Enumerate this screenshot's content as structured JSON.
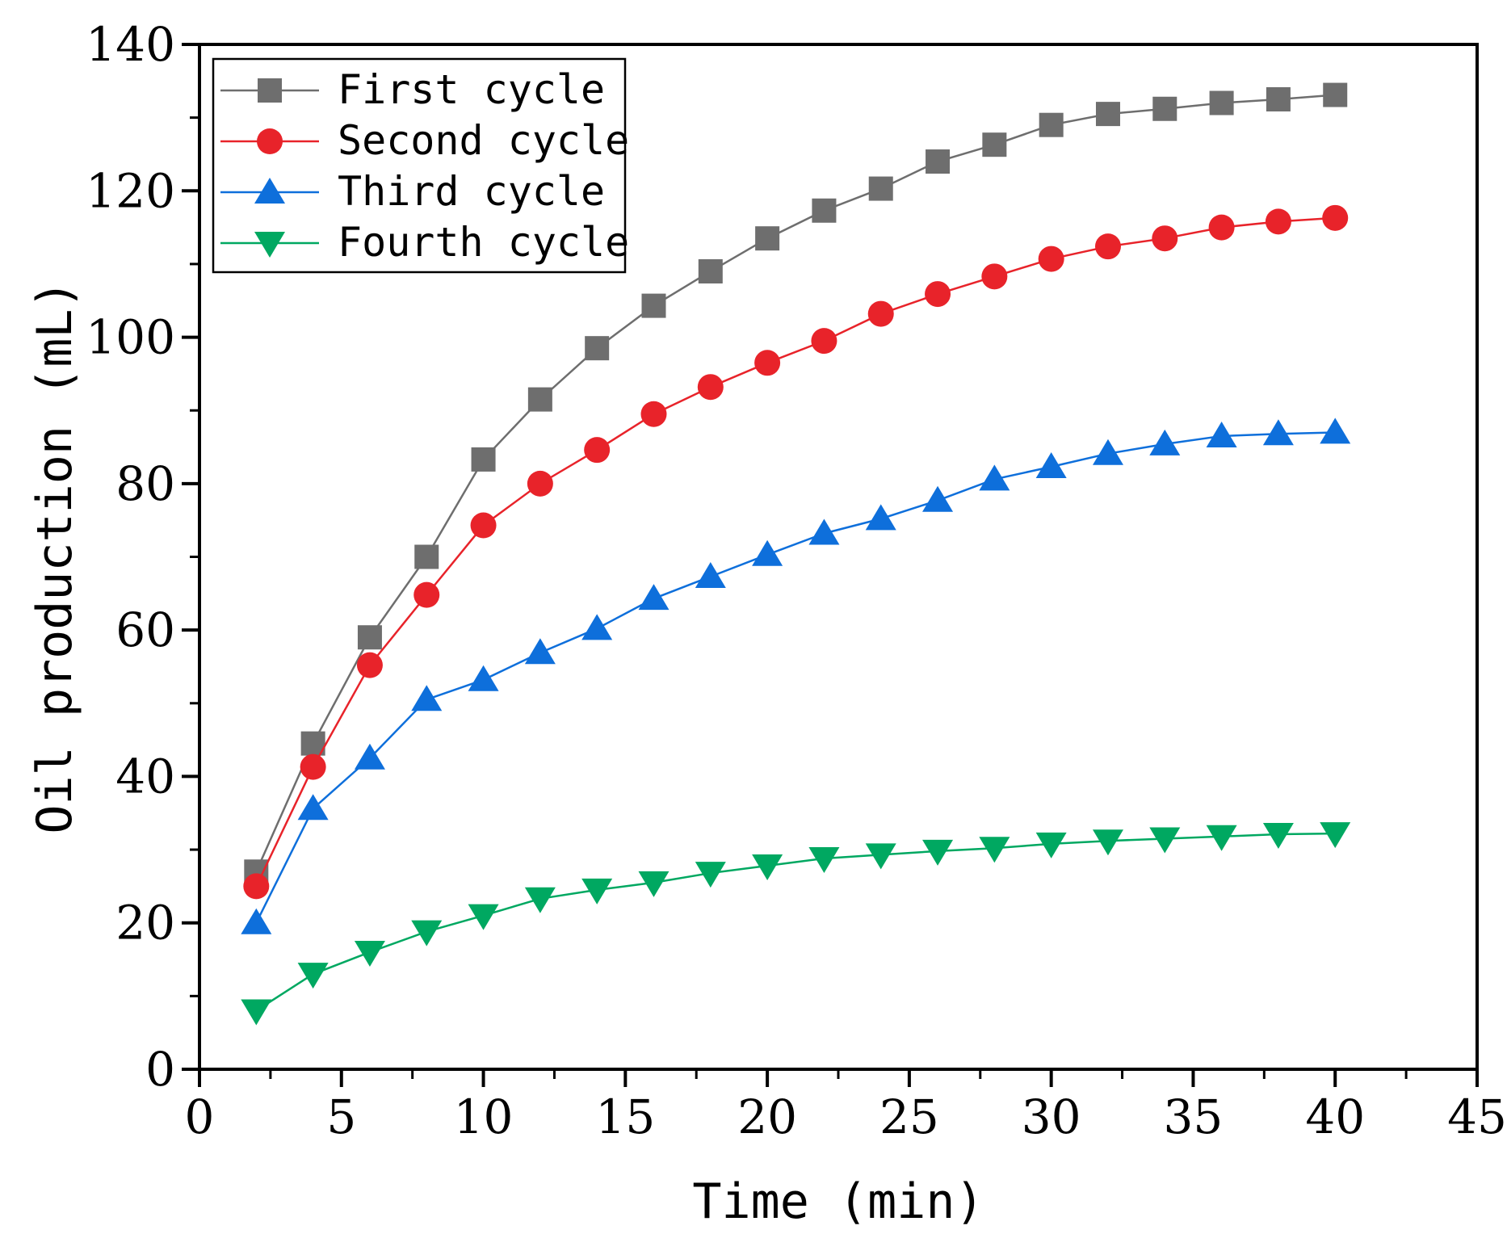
{
  "chart_data": {
    "type": "line",
    "title": "",
    "xlabel": "Time (min)",
    "ylabel": "Oil production (mL)",
    "xlim": [
      0,
      45
    ],
    "ylim": [
      0,
      140
    ],
    "x_ticks": [
      0,
      5,
      10,
      15,
      20,
      25,
      30,
      35,
      40,
      45
    ],
    "y_ticks": [
      0,
      20,
      40,
      60,
      80,
      100,
      120,
      140
    ],
    "x_tick_labels": [
      "0",
      "5",
      "10",
      "15",
      "20",
      "25",
      "30",
      "35",
      "40",
      "45"
    ],
    "y_tick_labels": [
      "0",
      "20",
      "40",
      "60",
      "80",
      "100",
      "120",
      "140"
    ],
    "grid": false,
    "legend_position": "top-left",
    "x": [
      2,
      4,
      6,
      8,
      10,
      12,
      14,
      16,
      18,
      20,
      22,
      24,
      26,
      28,
      30,
      32,
      34,
      36,
      38,
      40
    ],
    "series": [
      {
        "name": "First cycle",
        "color": "#6e6e6e",
        "marker": "square",
        "values": [
          27,
          44.5,
          59,
          70,
          83.3,
          91.5,
          98.5,
          104.3,
          109,
          113.5,
          117.3,
          120.3,
          124,
          126.3,
          129,
          130.5,
          131.2,
          132,
          132.5,
          133.1
        ]
      },
      {
        "name": "Second cycle",
        "color": "#e8232a",
        "marker": "circle",
        "values": [
          25,
          41.3,
          55.2,
          64.8,
          74.3,
          80,
          84.6,
          89.5,
          93.2,
          96.5,
          99.5,
          103.2,
          105.9,
          108.3,
          110.7,
          112.4,
          113.5,
          115,
          115.8,
          116.3
        ]
      },
      {
        "name": "Third cycle",
        "color": "#0e6fdb",
        "marker": "triangle-up",
        "values": [
          20,
          35.6,
          42.5,
          50.5,
          53.2,
          56.9,
          60.2,
          64.3,
          67.3,
          70.3,
          73.2,
          75.2,
          77.7,
          80.6,
          82.3,
          84.1,
          85.4,
          86.5,
          86.8,
          87
        ]
      },
      {
        "name": "Fourth cycle",
        "color": "#00a861",
        "marker": "triangle-down",
        "values": [
          8,
          13,
          16,
          18.8,
          21,
          23.3,
          24.5,
          25.5,
          26.8,
          27.8,
          28.8,
          29.3,
          29.8,
          30.2,
          30.8,
          31.2,
          31.5,
          31.8,
          32.1,
          32.2
        ]
      }
    ]
  }
}
